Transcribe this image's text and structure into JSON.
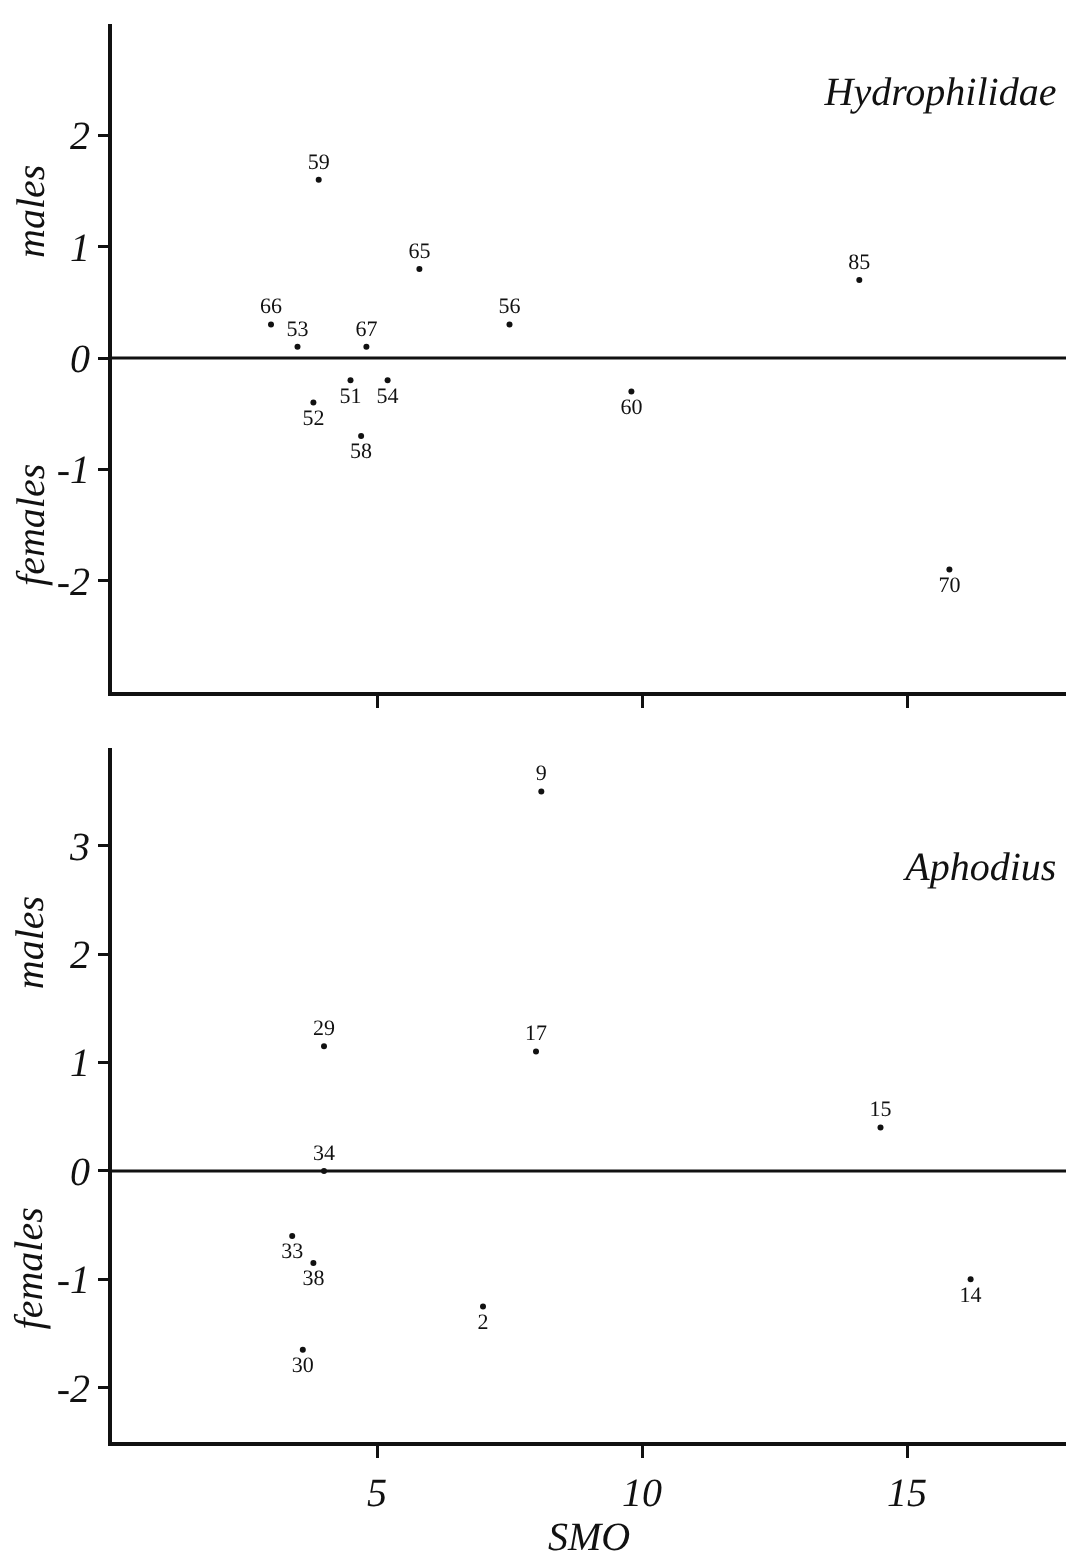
{
  "chart_data": [
    {
      "type": "scatter",
      "title": "Hydrophilidae",
      "tick_labels": "y",
      "marker": "circle",
      "annotations": [
        "males",
        "females"
      ],
      "series": [
        {
          "name": "59",
          "x": [
            3.9
          ],
          "values": [
            1.6
          ]
        },
        {
          "name": "65",
          "x": [
            5.8
          ],
          "values": [
            0.8
          ]
        },
        {
          "name": "66",
          "x": [
            3.0
          ],
          "values": [
            0.3
          ]
        },
        {
          "name": "53",
          "x": [
            3.5
          ],
          "values": [
            0.1
          ]
        },
        {
          "name": "67",
          "x": [
            4.8
          ],
          "values": [
            0.1
          ]
        },
        {
          "name": "56",
          "x": [
            7.5
          ],
          "values": [
            0.3
          ]
        },
        {
          "name": "85",
          "x": [
            14.1
          ],
          "values": [
            0.7
          ]
        },
        {
          "name": "51",
          "x": [
            4.5
          ],
          "values": [
            -0.2
          ]
        },
        {
          "name": "54",
          "x": [
            5.2
          ],
          "values": [
            -0.2
          ]
        },
        {
          "name": "60",
          "x": [
            9.8
          ],
          "values": [
            -0.3
          ]
        },
        {
          "name": "52",
          "x": [
            3.8
          ],
          "values": [
            -0.4
          ]
        },
        {
          "name": "58",
          "x": [
            4.7
          ],
          "values": [
            -0.7
          ]
        },
        {
          "name": "70",
          "x": [
            15.8
          ],
          "values": [
            -1.9
          ]
        }
      ],
      "xlim": [
        0,
        18
      ],
      "ylim": [
        -3,
        3
      ],
      "xticks": [
        {
          "value": 5,
          "label": null
        },
        {
          "value": 10,
          "label": null
        },
        {
          "value": 15,
          "label": null
        }
      ],
      "yticks": [
        -2,
        -1,
        0,
        1,
        2
      ],
      "ref_lines": [
        {
          "axis": "y",
          "value": 0
        }
      ]
    },
    {
      "type": "scatter",
      "title": "Aphodius",
      "xlabel": "SMO",
      "marker": "circle",
      "annotations": [
        "males",
        "females"
      ],
      "series": [
        {
          "name": "9",
          "x": [
            8.1
          ],
          "values": [
            3.5
          ]
        },
        {
          "name": "29",
          "x": [
            4.0
          ],
          "values": [
            1.15
          ]
        },
        {
          "name": "17",
          "x": [
            8.0
          ],
          "values": [
            1.1
          ]
        },
        {
          "name": "15",
          "x": [
            14.5
          ],
          "values": [
            0.4
          ]
        },
        {
          "name": "34",
          "x": [
            4.0
          ],
          "values": [
            0
          ]
        },
        {
          "name": "33",
          "x": [
            3.4
          ],
          "values": [
            -0.6
          ]
        },
        {
          "name": "38",
          "x": [
            3.8
          ],
          "values": [
            -0.85
          ]
        },
        {
          "name": "14",
          "x": [
            16.2
          ],
          "values": [
            -1.0
          ]
        },
        {
          "name": "2",
          "x": [
            7.0
          ],
          "values": [
            -1.25
          ]
        },
        {
          "name": "30",
          "x": [
            3.6
          ],
          "values": [
            -1.65
          ]
        }
      ],
      "xlim": [
        0,
        18
      ],
      "ylim": [
        -2.5,
        3.9
      ],
      "xticks": [
        5,
        10,
        15
      ],
      "yticks": [
        -2,
        -1,
        0,
        1,
        2,
        3
      ],
      "ref_lines": [
        {
          "axis": "y",
          "value": 0
        }
      ]
    }
  ]
}
